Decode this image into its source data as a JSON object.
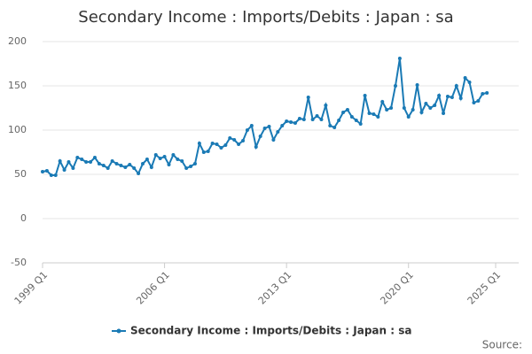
{
  "chart_data": {
    "type": "line",
    "title": "Secondary Income : Imports/Debits : Japan : sa",
    "source": "Source:",
    "x": [
      1999,
      1999.25,
      1999.5,
      1999.75,
      2000,
      2000.25,
      2000.5,
      2000.75,
      2001,
      2001.25,
      2001.5,
      2001.75,
      2002,
      2002.25,
      2002.5,
      2002.75,
      2003,
      2003.25,
      2003.5,
      2003.75,
      2004,
      2004.25,
      2004.5,
      2004.75,
      2005,
      2005.25,
      2005.5,
      2005.75,
      2006,
      2006.25,
      2006.5,
      2006.75,
      2007,
      2007.25,
      2007.5,
      2007.75,
      2008,
      2008.25,
      2008.5,
      2008.75,
      2009,
      2009.25,
      2009.5,
      2009.75,
      2010,
      2010.25,
      2010.5,
      2010.75,
      2011,
      2011.25,
      2011.5,
      2011.75,
      2012,
      2012.25,
      2012.5,
      2012.75,
      2013,
      2013.25,
      2013.5,
      2013.75,
      2014,
      2014.25,
      2014.5,
      2014.75,
      2015,
      2015.25,
      2015.5,
      2015.75,
      2016,
      2016.25,
      2016.5,
      2016.75,
      2017,
      2017.25,
      2017.5,
      2017.75,
      2018,
      2018.25,
      2018.5,
      2018.75,
      2019,
      2019.25,
      2019.5,
      2019.75,
      2020,
      2020.25,
      2020.5,
      2020.75,
      2021,
      2021.25,
      2021.5,
      2021.75,
      2022,
      2022.25,
      2022.5,
      2022.75,
      2023,
      2023.25,
      2023.5,
      2023.75,
      2024,
      2024.25,
      2024.5
    ],
    "series": [
      {
        "name": "Secondary Income : Imports/Debits : Japan : sa",
        "color": "#1a7ab5",
        "values": [
          53,
          54,
          49,
          49,
          65,
          55,
          64,
          57,
          69,
          67,
          64,
          64,
          69,
          62,
          60,
          57,
          65,
          62,
          60,
          58,
          61,
          57,
          51,
          62,
          67,
          58,
          72,
          68,
          70,
          61,
          72,
          67,
          65,
          57,
          59,
          62,
          85,
          75,
          76,
          85,
          84,
          80,
          83,
          91,
          89,
          84,
          88,
          100,
          105,
          81,
          93,
          102,
          104,
          89,
          98,
          105,
          110,
          109,
          108,
          113,
          112,
          137,
          112,
          116,
          112,
          128,
          105,
          103,
          111,
          120,
          123,
          115,
          111,
          107,
          139,
          119,
          118,
          115,
          132,
          123,
          125,
          150,
          181,
          125,
          115,
          123,
          151,
          120,
          130,
          125,
          128,
          139,
          119,
          138,
          137,
          150,
          136,
          159,
          154,
          131,
          133,
          141,
          142
        ]
      }
    ],
    "xlim": [
      1999,
      2025
    ],
    "xticks": [
      {
        "value": 1999,
        "label": "1999 Q1"
      },
      {
        "value": 2006,
        "label": "2006 Q1"
      },
      {
        "value": 2013,
        "label": "2013 Q1"
      },
      {
        "value": 2020,
        "label": "2020 Q1"
      },
      {
        "value": 2025,
        "label": "2025 Q1"
      }
    ],
    "ylim": [
      -50,
      200
    ],
    "yticks": [
      -50,
      0,
      50,
      100,
      150,
      200
    ],
    "grid": true,
    "legend": "bottom"
  }
}
